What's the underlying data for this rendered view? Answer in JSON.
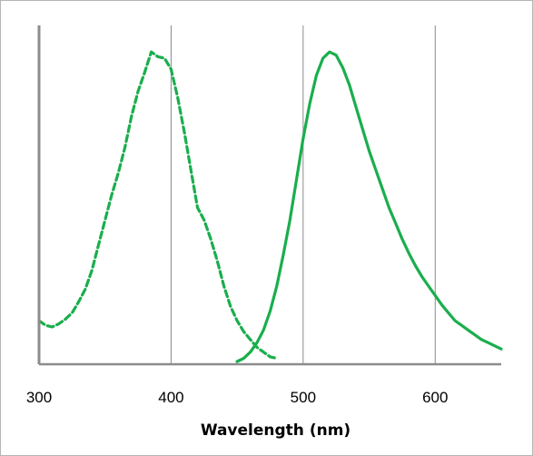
{
  "chart_data": {
    "type": "line",
    "xlabel": "Wavelength (nm)",
    "ylabel": "",
    "xlim": [
      300,
      650
    ],
    "ylim": [
      0,
      1
    ],
    "x_ticks": [
      300,
      400,
      500,
      600
    ],
    "grid": {
      "vertical": true,
      "horizontal": false
    },
    "y_ticks_shown": false,
    "legend": "none",
    "series": [
      {
        "style": "dashed",
        "color": "#1aae4d",
        "x": [
          300,
          305,
          310,
          315,
          320,
          325,
          330,
          335,
          340,
          345,
          350,
          355,
          360,
          365,
          370,
          375,
          380,
          385,
          390,
          395,
          400,
          405,
          410,
          415,
          420,
          425,
          430,
          435,
          440,
          445,
          450,
          455,
          460,
          465,
          470,
          475,
          480
        ],
        "y": [
          0.13,
          0.115,
          0.11,
          0.12,
          0.135,
          0.155,
          0.19,
          0.23,
          0.29,
          0.37,
          0.45,
          0.53,
          0.6,
          0.68,
          0.78,
          0.86,
          0.92,
          0.985,
          0.97,
          0.965,
          0.93,
          0.84,
          0.73,
          0.61,
          0.49,
          0.45,
          0.39,
          0.32,
          0.24,
          0.175,
          0.13,
          0.095,
          0.07,
          0.045,
          0.03,
          0.015,
          0.01
        ]
      },
      {
        "style": "solid",
        "color": "#1aae4d",
        "x": [
          450,
          455,
          460,
          465,
          470,
          475,
          480,
          485,
          490,
          495,
          500,
          505,
          510,
          515,
          520,
          525,
          530,
          535,
          540,
          545,
          550,
          555,
          560,
          565,
          570,
          575,
          580,
          585,
          590,
          595,
          600,
          605,
          610,
          615,
          620,
          625,
          630,
          635,
          640,
          645,
          650
        ],
        "y": [
          0.0,
          0.01,
          0.03,
          0.06,
          0.1,
          0.16,
          0.24,
          0.34,
          0.45,
          0.58,
          0.71,
          0.82,
          0.91,
          0.965,
          0.985,
          0.975,
          0.935,
          0.88,
          0.81,
          0.74,
          0.67,
          0.61,
          0.55,
          0.49,
          0.44,
          0.39,
          0.345,
          0.305,
          0.27,
          0.24,
          0.21,
          0.18,
          0.155,
          0.13,
          0.115,
          0.1,
          0.085,
          0.07,
          0.06,
          0.05,
          0.04
        ]
      }
    ]
  }
}
